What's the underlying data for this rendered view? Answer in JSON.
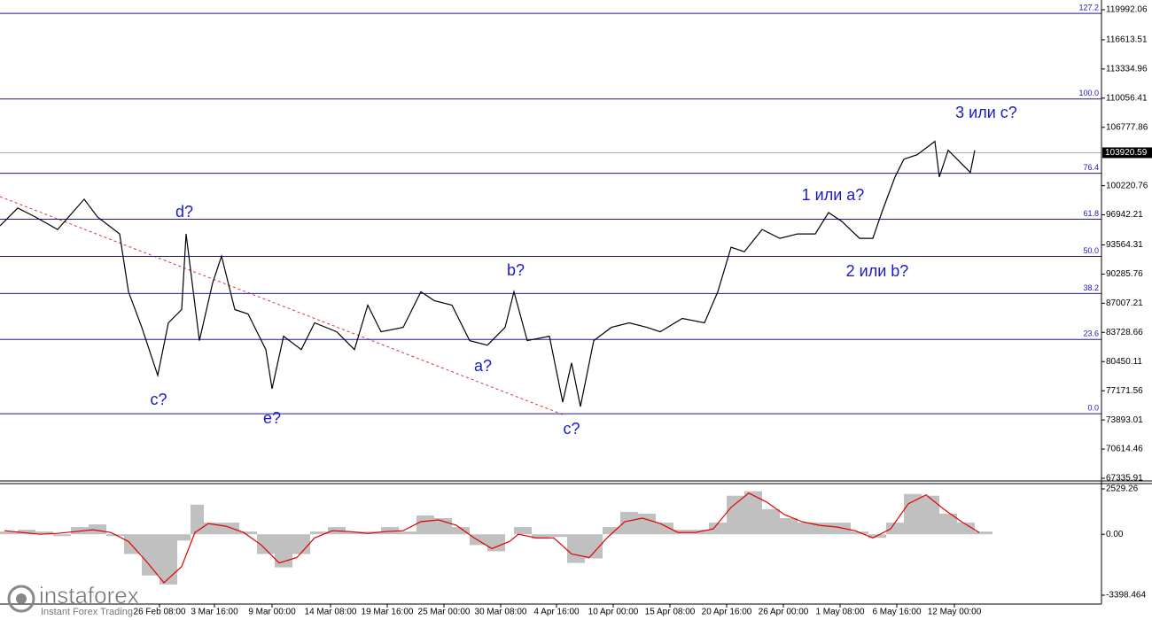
{
  "chart_data": [
    {
      "type": "line",
      "color": "#000000",
      "x": [
        0,
        10,
        20,
        32.5,
        47.5,
        55,
        67.5,
        72.5,
        80,
        89,
        95,
        102.5,
        105,
        112.5,
        120,
        125,
        132.5,
        140,
        150,
        153.5,
        160,
        170,
        177.5,
        190,
        200,
        207.5,
        215,
        227.5,
        237.5,
        245,
        255,
        265,
        275,
        285,
        290,
        297.5,
        310,
        317.5,
        322.5,
        327.5,
        335,
        345,
        355,
        365,
        372.5,
        385,
        397.5,
        405,
        412.5,
        420,
        430,
        440,
        450,
        460,
        467.5,
        475,
        485,
        492.5,
        497.5,
        505,
        510,
        517.5,
        527.5,
        530,
        535,
        542.5,
        547.5,
        550
      ],
      "values": [
        95700,
        97700,
        96700,
        95300,
        98700,
        96700,
        94800,
        88300,
        84300,
        78900,
        84800,
        86300,
        94800,
        82800,
        89300,
        92300,
        86300,
        85800,
        81800,
        77400,
        83300,
        81800,
        84800,
        83800,
        81800,
        86800,
        83800,
        84300,
        88300,
        87300,
        86800,
        82800,
        82300,
        84300,
        88300,
        82800,
        83300,
        75900,
        80300,
        75400,
        82800,
        84300,
        84800,
        84300,
        83800,
        85300,
        84800,
        88300,
        93300,
        92800,
        95300,
        94300,
        94800,
        94800,
        97200,
        96200,
        94300,
        94300,
        97200,
        101200,
        103200,
        103700,
        105200,
        101200,
        104200,
        102700,
        101700,
        104200
      ],
      "xlim": [
        0,
        621.5
      ],
      "xticks": [
        {
          "value": 90,
          "label": "26 Feb 08:00"
        },
        {
          "value": 121,
          "label": "3 Mar 16:00"
        },
        {
          "value": 153.5,
          "label": "9 Mar 00:00"
        },
        {
          "value": 186.5,
          "label": "14 Mar 08:00"
        },
        {
          "value": 218.5,
          "label": "19 Mar 16:00"
        },
        {
          "value": 250.5,
          "label": "25 Mar 00:00"
        },
        {
          "value": 282.5,
          "label": "30 Mar 08:00"
        },
        {
          "value": 314,
          "label": "4 Apr 16:00"
        },
        {
          "value": 346,
          "label": "10 Apr 00:00"
        },
        {
          "value": 378,
          "label": "15 Apr 08:00"
        },
        {
          "value": 410,
          "label": "20 Apr 16:00"
        },
        {
          "value": 442,
          "label": "26 Apr 00:00"
        },
        {
          "value": 474,
          "label": "1 May 08:00"
        },
        {
          "value": 506,
          "label": "6 May 16:00"
        },
        {
          "value": 538.5,
          "label": "12 May 00:00"
        }
      ],
      "ylim": [
        67038,
        121085
      ],
      "yticks": [
        119992.06,
        116613.51,
        113334.96,
        110056.41,
        106777.86,
        100220.76,
        96942.21,
        93564.31,
        90285.76,
        87007.21,
        83728.66,
        80450.11,
        77171.56,
        73893.01,
        70614.46,
        67335.91
      ],
      "last_price": 103920.59,
      "levels": [
        {
          "value": 74587,
          "label": "0.0"
        },
        {
          "value": 82934,
          "label": "23.6"
        },
        {
          "value": 88098,
          "label": "38.2"
        },
        {
          "value": 92272,
          "label": "50.0"
        },
        {
          "value": 96446,
          "label": "61.8"
        },
        {
          "value": 101611,
          "label": "76.4"
        },
        {
          "value": 109957,
          "label": "100.0"
        },
        {
          "value": 119578,
          "label": "127.2"
        }
      ],
      "annotations": [
        "3 или c?",
        "1 или a?",
        "2 или b?",
        "d?",
        "b?",
        "a?",
        "c?",
        "e?",
        "c?"
      ]
    },
    {
      "type": "bar",
      "color": "#c0c0c0",
      "x": [
        0,
        10,
        20,
        30,
        40,
        50,
        60,
        70,
        80,
        90,
        100,
        107.5,
        115,
        125,
        135,
        145,
        155,
        165,
        175,
        185,
        195,
        205,
        215,
        225,
        235,
        245,
        255,
        265,
        275,
        285,
        290,
        300,
        310,
        320,
        330,
        340,
        350,
        360,
        370,
        380,
        390,
        400,
        410,
        420,
        430,
        440,
        450,
        460,
        470,
        480,
        490,
        500,
        510,
        520,
        530,
        540,
        550
      ],
      "values": [
        150,
        250,
        150,
        -100,
        400,
        550,
        -100,
        -1100,
        -2300,
        -2800,
        -350,
        1650,
        650,
        650,
        150,
        -1100,
        -1850,
        -1100,
        150,
        400,
        150,
        150,
        400,
        150,
        1050,
        900,
        400,
        -600,
        -950,
        0,
        400,
        -250,
        -150,
        -1600,
        -1350,
        400,
        1250,
        1150,
        650,
        250,
        250,
        650,
        2150,
        2400,
        1400,
        900,
        650,
        650,
        650,
        150,
        -200,
        650,
        2250,
        2150,
        1150,
        650,
        150
      ],
      "signal": {
        "color": "#e00000",
        "values": [
          200,
          100,
          0,
          50,
          150,
          250,
          100,
          -400,
          -1500,
          -2700,
          -1800,
          100,
          600,
          450,
          100,
          -600,
          -1600,
          -1300,
          -200,
          200,
          150,
          50,
          150,
          200,
          700,
          800,
          500,
          -200,
          -800,
          -400,
          0,
          -200,
          -200,
          -1100,
          -1300,
          -200,
          700,
          900,
          600,
          100,
          100,
          300,
          1500,
          2300,
          1800,
          1100,
          700,
          500,
          400,
          200,
          -200,
          300,
          1700,
          2200,
          1400,
          700,
          100
        ]
      },
      "xlim": [
        0,
        621.5
      ],
      "ylim": [
        -3893,
        2777
      ],
      "yticks": [
        2529.26,
        {
          "value": 0,
          "label": "0.00"
        },
        -3398.464
      ]
    }
  ],
  "watermark": {
    "brand": "instaforex",
    "tagline": "Instant Forex Trading"
  }
}
